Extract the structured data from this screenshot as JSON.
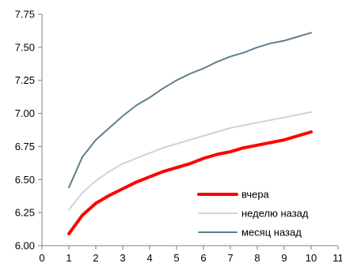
{
  "chart_data": {
    "type": "line",
    "title": "",
    "xlabel": "",
    "ylabel": "",
    "xlim": [
      0,
      11
    ],
    "ylim": [
      6.0,
      7.75
    ],
    "x_ticks": [
      0,
      1,
      2,
      3,
      4,
      5,
      6,
      7,
      8,
      9,
      10,
      11
    ],
    "y_ticks": [
      "6.00",
      "6.25",
      "6.50",
      "6.75",
      "7.00",
      "7.25",
      "7.50",
      "7.75"
    ],
    "grid": false,
    "legend_position": "bottom-right",
    "series": [
      {
        "name": "вчера",
        "color": "#ff0000",
        "x": [
          1,
          1.5,
          2,
          2.5,
          3,
          3.5,
          4,
          4.5,
          5,
          5.5,
          6,
          6.5,
          7,
          7.5,
          8,
          8.5,
          9,
          9.5,
          10
        ],
        "values": [
          6.09,
          6.23,
          6.32,
          6.38,
          6.43,
          6.48,
          6.52,
          6.56,
          6.59,
          6.62,
          6.66,
          6.69,
          6.71,
          6.74,
          6.76,
          6.78,
          6.8,
          6.83,
          6.86
        ]
      },
      {
        "name": "неделю назад",
        "color": "#c8d4de",
        "x": [
          1,
          1.5,
          2,
          2.5,
          3,
          3.5,
          4,
          4.5,
          5,
          5.5,
          6,
          6.5,
          7,
          7.5,
          8,
          8.5,
          9,
          9.5,
          10
        ],
        "values": [
          6.27,
          6.4,
          6.49,
          6.56,
          6.62,
          6.66,
          6.7,
          6.74,
          6.77,
          6.8,
          6.83,
          6.86,
          6.89,
          6.91,
          6.93,
          6.95,
          6.97,
          6.99,
          7.01
        ]
      },
      {
        "name": "месяц назад",
        "color": "#5f7f8c",
        "x": [
          1,
          1.5,
          2,
          2.5,
          3,
          3.5,
          4,
          4.5,
          5,
          5.5,
          6,
          6.5,
          7,
          7.5,
          8,
          8.5,
          9,
          9.5,
          10
        ],
        "values": [
          6.44,
          6.67,
          6.8,
          6.89,
          6.98,
          7.06,
          7.12,
          7.19,
          7.25,
          7.3,
          7.34,
          7.39,
          7.43,
          7.46,
          7.5,
          7.53,
          7.55,
          7.58,
          7.61
        ]
      }
    ]
  }
}
